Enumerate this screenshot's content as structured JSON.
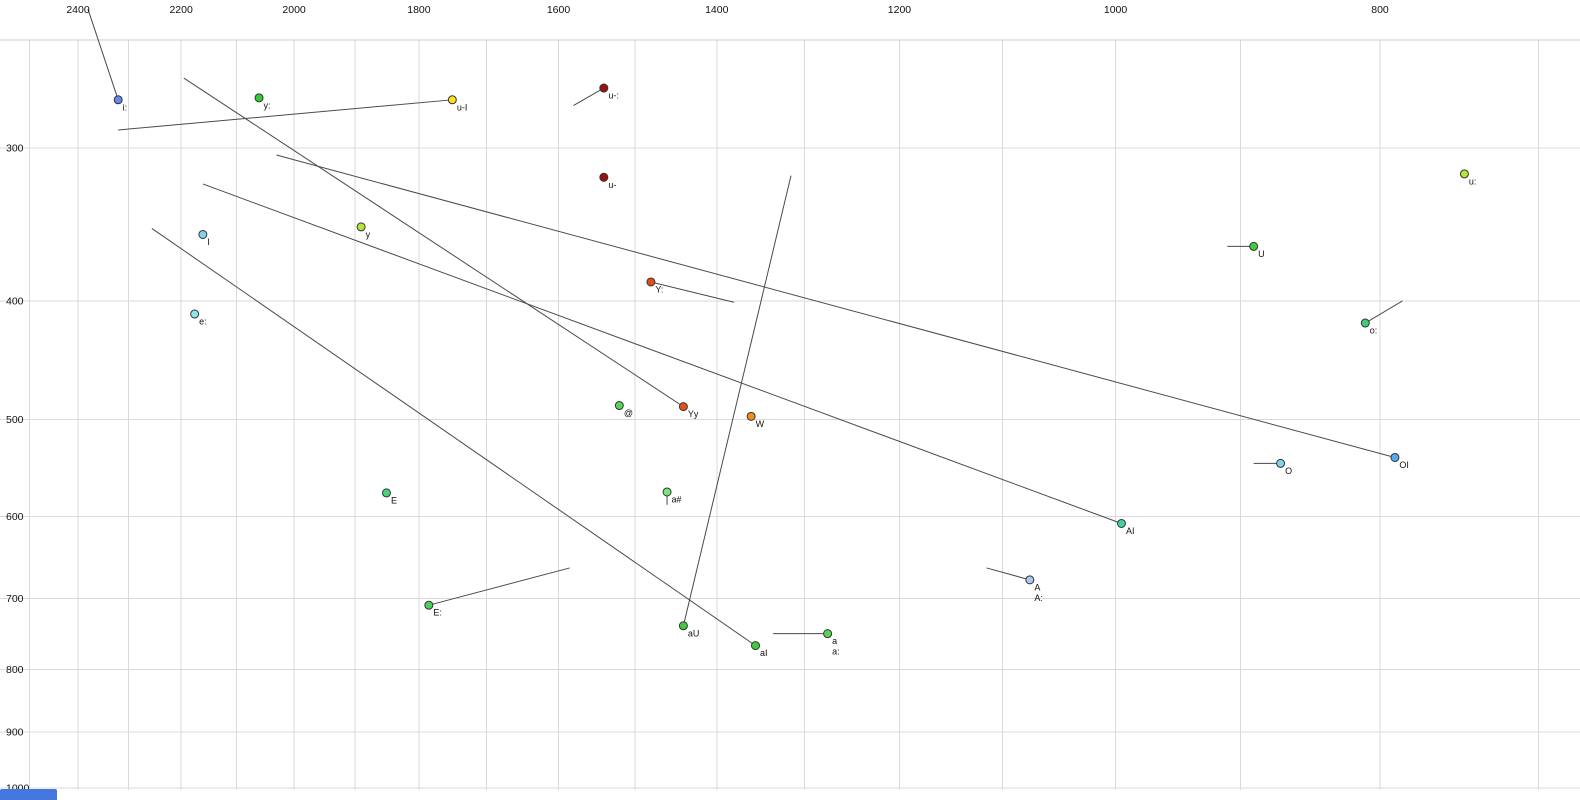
{
  "chart_data": {
    "type": "scatter",
    "title": "",
    "description": "Vowel formant plot: F2 (Hz) on reversed log x-axis, F1 (Hz) on reversed log y-axis, with diphthong trajectory lines ending at labelled vowel points",
    "x_axis": {
      "unit": "Hz",
      "scale": "log",
      "reversed": true,
      "tick_labels": [
        2400,
        2200,
        2000,
        1800,
        1600,
        1400,
        1200,
        1000,
        800
      ],
      "grid": {
        "min": 700,
        "max": 2500,
        "step": 100
      }
    },
    "y_axis": {
      "unit": "Hz",
      "scale": "log",
      "reversed": true,
      "tick_labels": [
        300,
        400,
        500,
        600,
        700,
        800,
        900,
        1000
      ],
      "grid": {
        "min": 300,
        "max": 1000,
        "step": 100
      }
    },
    "points": [
      {
        "label": "i:",
        "f2": 2320,
        "f1": 274,
        "color": "#6688ee"
      },
      {
        "label": "y:",
        "f2": 2060,
        "f1": 273,
        "color": "#33cc33"
      },
      {
        "label": "u-I",
        "f2": 1750,
        "f1": 274,
        "color": "#ffdd22"
      },
      {
        "label": "u-:",
        "f2": 1540,
        "f1": 268,
        "color": "#991111"
      },
      {
        "label": "u-",
        "f2": 1540,
        "f1": 317,
        "color": "#991111"
      },
      {
        "label": "u:",
        "f2": 745,
        "f1": 315,
        "color": "#b5e635"
      },
      {
        "label": "y",
        "f2": 1890,
        "f1": 348,
        "color": "#b5e635"
      },
      {
        "label": "I",
        "f2": 2160,
        "f1": 353,
        "color": "#7fd4e8"
      },
      {
        "label": "U",
        "f2": 890,
        "f1": 361,
        "color": "#3dcc3d"
      },
      {
        "label": "Y:",
        "f2": 1480,
        "f1": 386,
        "color": "#e64a19"
      },
      {
        "label": "e:",
        "f2": 2175,
        "f1": 410,
        "color": "#8fe6e6"
      },
      {
        "label": "o:",
        "f2": 810,
        "f1": 417,
        "color": "#3dcc7a"
      },
      {
        "label": "@",
        "f2": 1520,
        "f1": 487,
        "color": "#55d455"
      },
      {
        "label": "Yy",
        "f2": 1440,
        "f1": 488,
        "color": "#e65019"
      },
      {
        "label": "W",
        "f2": 1360,
        "f1": 497,
        "color": "#f28c1e"
      },
      {
        "label": "O",
        "f2": 870,
        "f1": 543,
        "color": "#7fd4e8"
      },
      {
        "label": "OI",
        "f2": 790,
        "f1": 537,
        "color": "#55aaee"
      },
      {
        "label": "E",
        "f2": 1850,
        "f1": 574,
        "color": "#4ad47a"
      },
      {
        "label": "a#",
        "f2": 1460,
        "f1": 573,
        "color": "#7ae67a"
      },
      {
        "label": "AI",
        "f2": 995,
        "f1": 608,
        "color": "#3dd4a0"
      },
      {
        "label": "A",
        "sublabel": "A:",
        "f2": 1075,
        "f1": 676,
        "color": "#aac8f0"
      },
      {
        "label": "E:",
        "f2": 1785,
        "f1": 709,
        "color": "#4ad455"
      },
      {
        "label": "aU",
        "f2": 1440,
        "f1": 737,
        "color": "#3dcc3d"
      },
      {
        "label": "aI",
        "f2": 1355,
        "f1": 765,
        "color": "#3dcc3d"
      },
      {
        "label": "a",
        "sublabel": "a:",
        "f2": 1275,
        "f1": 748,
        "color": "#55d455"
      }
    ],
    "trajectories": [
      {
        "name": "i:-onset",
        "from": [
          2380,
          231
        ],
        "to": [
          2320,
          274
        ]
      },
      {
        "name": "u-I-glide",
        "from": [
          2320,
          290
        ],
        "to": [
          1750,
          274
        ]
      },
      {
        "name": "Yy-glide",
        "from": [
          2195,
          263
        ],
        "to": [
          1440,
          488
        ]
      },
      {
        "name": "OI-glide",
        "from": [
          2030,
          304
        ],
        "to": [
          790,
          537
        ]
      },
      {
        "name": "AI-glide",
        "from": [
          2160,
          321
        ],
        "to": [
          995,
          608
        ]
      },
      {
        "name": "aI-glide",
        "from": [
          2255,
          349
        ],
        "to": [
          1355,
          765
        ]
      },
      {
        "name": "aU-glide",
        "from": [
          1315,
          316
        ],
        "to": [
          1440,
          737
        ]
      },
      {
        "name": "u-:-onset",
        "from": [
          1580,
          277
        ],
        "to": [
          1540,
          268
        ]
      },
      {
        "name": "U-onset",
        "from": [
          910,
          361
        ],
        "to": [
          890,
          361
        ]
      },
      {
        "name": "o:-offglide",
        "from": [
          810,
          417
        ],
        "to": [
          785,
          400
        ]
      },
      {
        "name": "Y:-offglide",
        "from": [
          1480,
          386
        ],
        "to": [
          1380,
          401
        ]
      },
      {
        "name": "O-onset",
        "from": [
          890,
          543
        ],
        "to": [
          870,
          543
        ]
      },
      {
        "name": "E:-offglide",
        "from": [
          1785,
          709
        ],
        "to": [
          1585,
          661
        ]
      },
      {
        "name": "A-onset",
        "from": [
          1115,
          661
        ],
        "to": [
          1075,
          676
        ]
      },
      {
        "name": "a-onset",
        "from": [
          1335,
          748
        ],
        "to": [
          1275,
          748
        ]
      },
      {
        "name": "a#-tick",
        "from": [
          1460,
          573
        ],
        "to": [
          1460,
          587
        ]
      }
    ]
  },
  "decorations": {
    "bottom_left_accent_color": "#4477dd",
    "grid_color": "#d9d9d9",
    "trajectory_color": "#4a4a4a"
  }
}
